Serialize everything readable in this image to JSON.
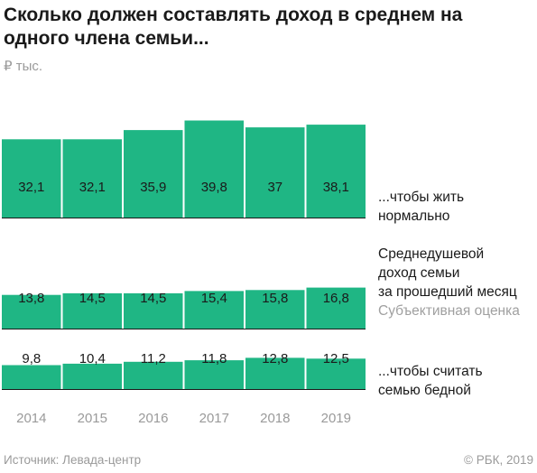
{
  "title": "Сколько должен составлять доход в среднем на одного члена семьи...",
  "unit": "₽ тыс.",
  "source": "Источник: Левада-центр",
  "copyright": "© РБК, 2019",
  "colors": {
    "bar": "#1fb684",
    "baseline": "#1a1a1a",
    "label": "#1a1a1a",
    "year": "#9a9a9a"
  },
  "annotations": {
    "normal": [
      "...чтобы жить",
      "нормально"
    ],
    "income": [
      "Среднедушевой",
      "доход семьи",
      "за прошедший месяц"
    ],
    "income_note": "Субъективная оценка",
    "poor": [
      "...чтобы считать",
      "семью бедной"
    ]
  },
  "chart_data": {
    "type": "bar",
    "categories": [
      "2014",
      "2015",
      "2016",
      "2017",
      "2018",
      "2019"
    ],
    "series": [
      {
        "name": "...чтобы жить нормально",
        "values": [
          32.1,
          32.1,
          35.9,
          39.8,
          37,
          38.1
        ],
        "labels": [
          "32,1",
          "32,1",
          "35,9",
          "39,8",
          "37",
          "38,1"
        ]
      },
      {
        "name": "Среднедушевой доход семьи за прошедший месяц",
        "values": [
          13.8,
          14.5,
          14.5,
          15.4,
          15.8,
          16.8
        ],
        "labels": [
          "13,8",
          "14,5",
          "14,5",
          "15,4",
          "15,8",
          "16,8"
        ]
      },
      {
        "name": "...чтобы считать семью бедной",
        "values": [
          9.8,
          10.4,
          11.2,
          11.8,
          12.8,
          12.5
        ],
        "labels": [
          "9,8",
          "10,4",
          "11,2",
          "11,8",
          "12,8",
          "12,5"
        ]
      }
    ],
    "ylabel": "₽ тыс.",
    "grid": false,
    "legend": "right"
  }
}
